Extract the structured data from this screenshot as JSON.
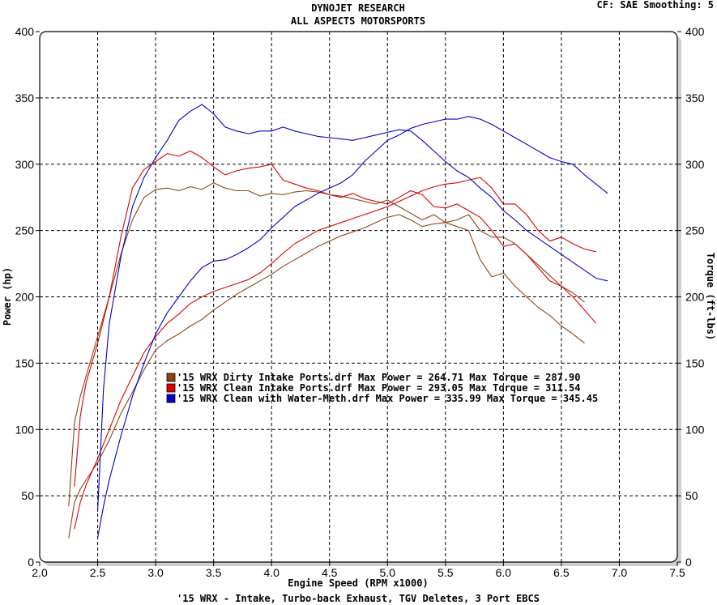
{
  "header": {
    "title": "DYNOJET RESEARCH",
    "subtitle": "ALL ASPECTS MOTORSPORTS",
    "correction": "CF: SAE  Smoothing: 5"
  },
  "footer": "'15 WRX - Intake, Turbo-back Exhaust, TGV Deletes, 3 Port EBCS",
  "chart_data": {
    "type": "line",
    "title": "DYNOJET RESEARCH",
    "subtitle": "ALL ASPECTS MOTORSPORTS",
    "xlabel": "Engine Speed (RPM x1000)",
    "ylabel_left": "Power (hp)",
    "ylabel_right": "Torque (ft-lbs)",
    "xlim": [
      2.0,
      7.5
    ],
    "ylim": [
      0,
      400
    ],
    "ylim_right": [
      0,
      400
    ],
    "x_ticks": [
      "2.0",
      "2.5",
      "3.0",
      "3.5",
      "4.0",
      "4.5",
      "5.0",
      "5.5",
      "6.0",
      "6.5",
      "7.0",
      "7.5"
    ],
    "y_ticks": [
      "0",
      "50",
      "100",
      "150",
      "200",
      "250",
      "300",
      "350",
      "400"
    ],
    "y_ticks_right": [
      "0",
      "50",
      "100",
      "150",
      "200",
      "250",
      "300",
      "350",
      "400"
    ],
    "grid": true,
    "legend_position": "center-left",
    "series": [
      {
        "name": "'15 WRX Dirty Intake Ports.drf",
        "legend_text": "'15 WRX Dirty Intake Ports.drf Max Power = 264.71    Max Torque = 287.90",
        "color": "#8b4513",
        "power": {
          "x": [
            2.25,
            2.3,
            2.35,
            2.4,
            2.5,
            2.6,
            2.7,
            2.8,
            2.9,
            3.0,
            3.1,
            3.2,
            3.3,
            3.4,
            3.5,
            3.6,
            3.7,
            3.8,
            3.9,
            4.0,
            4.1,
            4.2,
            4.3,
            4.4,
            4.5,
            4.6,
            4.7,
            4.8,
            4.9,
            5.0,
            5.1,
            5.2,
            5.3,
            5.4,
            5.5,
            5.6,
            5.7,
            5.8,
            5.9,
            6.0,
            6.1,
            6.2,
            6.3,
            6.4,
            6.5,
            6.6,
            6.7
          ],
          "y": [
            18,
            45,
            55,
            62,
            75,
            92,
            112,
            128,
            145,
            160,
            167,
            172,
            178,
            183,
            190,
            196,
            202,
            207,
            212,
            217,
            223,
            228,
            233,
            238,
            242,
            246,
            249,
            252,
            256,
            260,
            262,
            258,
            253,
            255,
            256,
            258,
            262,
            250,
            245,
            245,
            240,
            232,
            224,
            216,
            208,
            203,
            196
          ]
        },
        "torque": {
          "x": [
            2.25,
            2.3,
            2.35,
            2.4,
            2.5,
            2.6,
            2.7,
            2.8,
            2.9,
            3.0,
            3.1,
            3.2,
            3.3,
            3.4,
            3.5,
            3.6,
            3.7,
            3.8,
            3.9,
            4.0,
            4.1,
            4.2,
            4.3,
            4.4,
            4.5,
            4.6,
            4.7,
            4.8,
            4.9,
            5.0,
            5.1,
            5.2,
            5.3,
            5.4,
            5.5,
            5.6,
            5.7,
            5.8,
            5.9,
            6.0,
            6.1,
            6.2,
            6.3,
            6.4,
            6.5,
            6.6,
            6.7
          ],
          "y": [
            42,
            105,
            125,
            140,
            170,
            200,
            232,
            258,
            275,
            281,
            282,
            280,
            283,
            281,
            286,
            282,
            280,
            280,
            276,
            278,
            277,
            279,
            280,
            279,
            277,
            276,
            274,
            272,
            270,
            273,
            268,
            263,
            258,
            262,
            256,
            253,
            250,
            228,
            215,
            218,
            208,
            200,
            192,
            186,
            178,
            172,
            165
          ]
        }
      },
      {
        "name": "'15 WRX Clean Intake Ports.drf",
        "legend_text": "'15 WRX Clean Intake Ports.drf Max Power = 293.05    Max Torque = 311.54",
        "color": "#dd0000",
        "power": {
          "x": [
            2.3,
            2.35,
            2.4,
            2.5,
            2.6,
            2.7,
            2.8,
            2.9,
            3.0,
            3.1,
            3.2,
            3.3,
            3.4,
            3.5,
            3.6,
            3.7,
            3.8,
            3.9,
            4.0,
            4.1,
            4.2,
            4.3,
            4.4,
            4.5,
            4.6,
            4.7,
            4.8,
            4.9,
            5.0,
            5.1,
            5.2,
            5.3,
            5.4,
            5.5,
            5.6,
            5.7,
            5.8,
            5.9,
            6.0,
            6.1,
            6.2,
            6.3,
            6.4,
            6.5,
            6.6,
            6.7,
            6.8
          ],
          "y": [
            25,
            45,
            58,
            78,
            100,
            122,
            140,
            158,
            170,
            180,
            187,
            195,
            200,
            204,
            207,
            210,
            213,
            218,
            225,
            233,
            240,
            245,
            250,
            253,
            256,
            259,
            262,
            265,
            268,
            272,
            276,
            280,
            283,
            285,
            286,
            288,
            290,
            282,
            270,
            270,
            262,
            250,
            242,
            245,
            240,
            236,
            234
          ]
        },
        "torque": {
          "x": [
            2.3,
            2.35,
            2.4,
            2.5,
            2.6,
            2.7,
            2.8,
            2.9,
            3.0,
            3.1,
            3.2,
            3.3,
            3.4,
            3.5,
            3.6,
            3.7,
            3.8,
            3.9,
            4.0,
            4.1,
            4.2,
            4.3,
            4.4,
            4.5,
            4.6,
            4.7,
            4.8,
            4.9,
            5.0,
            5.1,
            5.2,
            5.3,
            5.4,
            5.5,
            5.6,
            5.7,
            5.8,
            5.9,
            6.0,
            6.1,
            6.2,
            6.3,
            6.4,
            6.5,
            6.6,
            6.7,
            6.8
          ],
          "y": [
            57,
            110,
            135,
            165,
            200,
            245,
            282,
            296,
            302,
            308,
            306,
            310,
            305,
            298,
            292,
            295,
            297,
            298,
            300,
            288,
            285,
            282,
            280,
            277,
            275,
            278,
            274,
            272,
            270,
            275,
            280,
            277,
            268,
            267,
            270,
            265,
            260,
            250,
            238,
            240,
            232,
            222,
            212,
            208,
            200,
            190,
            180
          ]
        }
      },
      {
        "name": "'15 WRX Clean with Water-Meth.drf",
        "legend_text": "'15 WRX Clean with Water-Meth.drf Max Power = 335.99    Max Torque = 345.45",
        "color": "#0000cc",
        "power": {
          "x": [
            2.5,
            2.55,
            2.6,
            2.7,
            2.8,
            2.9,
            3.0,
            3.1,
            3.2,
            3.3,
            3.4,
            3.5,
            3.6,
            3.7,
            3.8,
            3.9,
            4.0,
            4.1,
            4.2,
            4.3,
            4.4,
            4.5,
            4.6,
            4.7,
            4.8,
            4.9,
            5.0,
            5.1,
            5.2,
            5.3,
            5.4,
            5.5,
            5.6,
            5.7,
            5.8,
            5.9,
            6.0,
            6.1,
            6.2,
            6.3,
            6.4,
            6.5,
            6.6,
            6.7,
            6.8,
            6.9
          ],
          "y": [
            18,
            42,
            62,
            95,
            125,
            150,
            172,
            188,
            200,
            212,
            222,
            227,
            228,
            232,
            237,
            243,
            252,
            260,
            268,
            273,
            278,
            282,
            286,
            292,
            302,
            310,
            318,
            322,
            327,
            330,
            332,
            334,
            334,
            336,
            334,
            330,
            325,
            320,
            315,
            310,
            305,
            302,
            300,
            292,
            285,
            278
          ]
        },
        "torque": {
          "x": [
            2.5,
            2.55,
            2.6,
            2.7,
            2.8,
            2.9,
            3.0,
            3.1,
            3.2,
            3.3,
            3.4,
            3.5,
            3.6,
            3.7,
            3.8,
            3.9,
            4.0,
            4.1,
            4.2,
            4.3,
            4.4,
            4.5,
            4.6,
            4.7,
            4.8,
            4.9,
            5.0,
            5.1,
            5.2,
            5.3,
            5.4,
            5.5,
            5.6,
            5.7,
            5.8,
            5.9,
            6.0,
            6.1,
            6.2,
            6.3,
            6.4,
            6.5,
            6.6,
            6.7,
            6.8,
            6.9
          ],
          "y": [
            38,
            130,
            180,
            230,
            268,
            290,
            305,
            318,
            333,
            340,
            345,
            338,
            328,
            325,
            323,
            325,
            325,
            328,
            325,
            323,
            321,
            320,
            319,
            318,
            320,
            322,
            324,
            326,
            325,
            318,
            310,
            302,
            295,
            290,
            282,
            275,
            265,
            258,
            250,
            244,
            238,
            232,
            226,
            220,
            214,
            212
          ]
        }
      }
    ]
  }
}
